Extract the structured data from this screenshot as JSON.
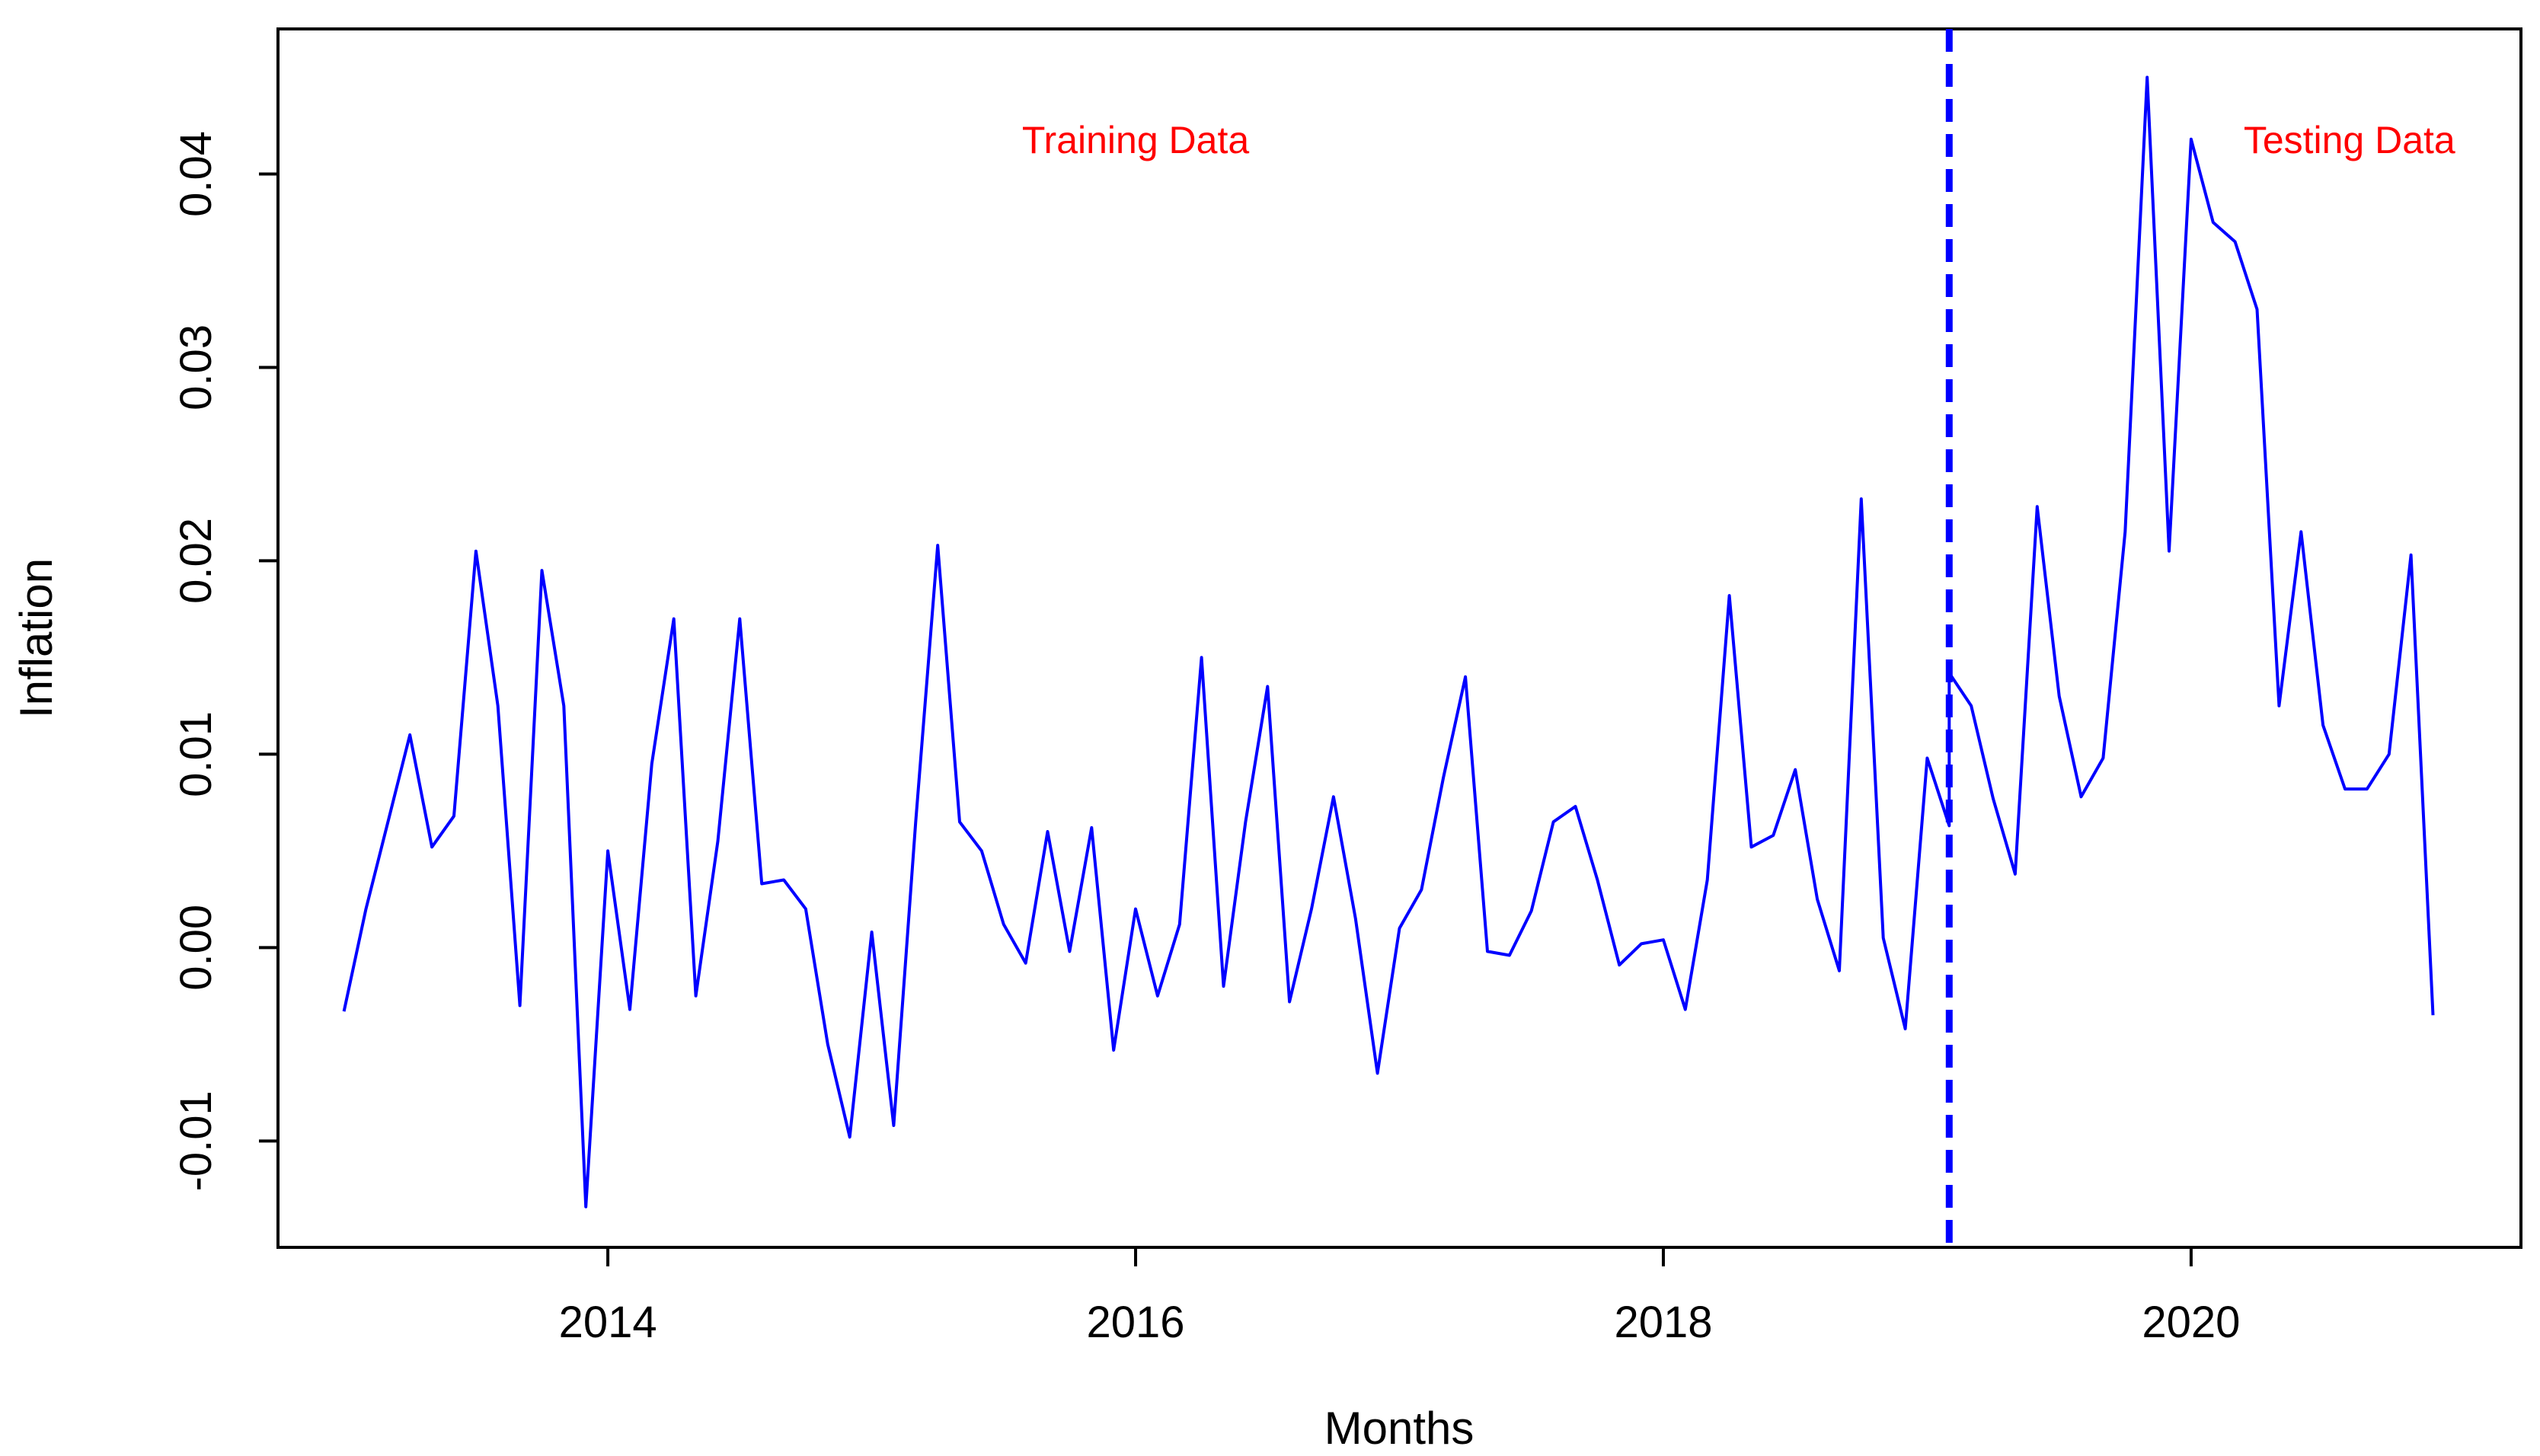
{
  "chart_data": {
    "type": "line",
    "xlabel": "Months",
    "ylabel": "Inflation",
    "xlim": [
      2012.75,
      2021.25
    ],
    "ylim": [
      -0.0155,
      0.0475
    ],
    "x_ticks": [
      2014,
      2016,
      2018,
      2020
    ],
    "x_tick_labels": [
      "2014",
      "2016",
      "2018",
      "2020"
    ],
    "y_ticks": [
      -0.01,
      0.0,
      0.01,
      0.02,
      0.03,
      0.04
    ],
    "y_tick_labels": [
      "-0.01",
      "0.00",
      "0.01",
      "0.02",
      "0.03",
      "0.04"
    ],
    "grid": false,
    "series_color": "#0000ff",
    "series": [
      {
        "x_start": 2013.0,
        "step": 0.0833333,
        "values": [
          -0.0033,
          0.002,
          0.0065,
          0.011,
          0.0052,
          0.0068,
          0.0205,
          0.0125,
          -0.003,
          0.0195,
          0.0125,
          -0.0134,
          0.005,
          -0.0032,
          0.0095,
          0.017,
          -0.0025,
          0.0055,
          0.017,
          0.0033,
          0.0035,
          0.002,
          -0.005,
          -0.0098,
          0.0008,
          -0.0092,
          0.0065,
          0.0208,
          0.0065,
          0.005,
          0.0012,
          -0.0008,
          0.006,
          -0.0002,
          0.0062,
          -0.0053,
          0.002,
          -0.0025,
          0.0012,
          0.015,
          -0.002,
          0.0065,
          0.0135,
          -0.0028,
          0.002,
          0.0078,
          0.0015,
          -0.0065,
          0.001,
          0.003,
          0.0088,
          0.014,
          -0.0002,
          -0.0004,
          0.0019,
          0.0065,
          0.0073,
          0.0035,
          -0.0009,
          0.0002,
          0.0004,
          -0.0032,
          0.0035,
          0.0182,
          0.0052,
          0.0058,
          0.0092,
          0.0025,
          -0.0012,
          0.0232,
          0.0005,
          -0.0042,
          0.0098,
          0.0063
        ]
      },
      {
        "x_start": 2019.0833,
        "step": 0.0833333,
        "values": [
          0.0142,
          0.0125,
          0.0077,
          0.0038,
          0.0228,
          0.013,
          0.0078,
          0.0098,
          0.0215,
          0.045,
          0.0205,
          0.0418,
          0.0375,
          0.0365,
          0.033,
          0.0125,
          0.0215,
          0.0115,
          0.0082,
          0.0082,
          0.01,
          0.0203,
          -0.0035
        ]
      }
    ],
    "split_line": {
      "x": 2019.0833,
      "color": "#0000ff",
      "style": "dashed"
    },
    "annotations": [
      {
        "text": "Training Data",
        "x": 2016.0,
        "y": 0.0418,
        "color": "#ff0000"
      },
      {
        "text": "Testing Data",
        "x": 2020.6,
        "y": 0.0418,
        "color": "#ff0000"
      }
    ]
  }
}
